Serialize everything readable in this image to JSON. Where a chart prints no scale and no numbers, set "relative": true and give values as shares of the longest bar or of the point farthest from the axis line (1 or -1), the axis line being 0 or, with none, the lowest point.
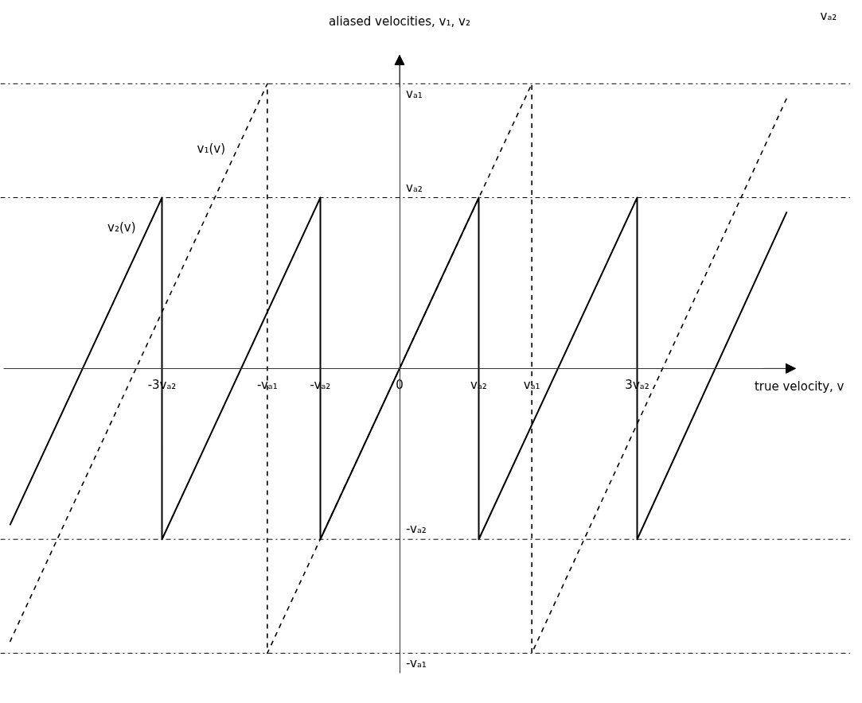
{
  "chart_data": {
    "type": "line",
    "relative": true,
    "xlabel": "true velocity, v",
    "ylabel": "aliased velocities, v₁, v₂",
    "annotations": [
      "vₐ₂"
    ],
    "xlim": [
      -5,
      5
    ],
    "xticks": [
      {
        "value": -3,
        "label": "-3vₐ₂"
      },
      {
        "value": -1.67,
        "label": "-vₐ₁"
      },
      {
        "value": -1,
        "label": "-vₐ₂"
      },
      0,
      {
        "value": 1,
        "label": "vₐ₂"
      },
      {
        "value": 1.67,
        "label": "vₐ₁"
      },
      {
        "value": 3,
        "label": "3vₐ₂"
      }
    ],
    "ref_lines": [
      {
        "axis": "y",
        "value": 1,
        "label": "vₐ₁",
        "color": "#000000",
        "line_style": "dashdot"
      },
      {
        "axis": "y",
        "value": 0.6,
        "label": "vₐ₂",
        "color": "#000000",
        "line_style": "dashdot"
      },
      {
        "axis": "y",
        "value": -0.6,
        "label": "-vₐ₂",
        "color": "#000000",
        "line_style": "dashdot"
      },
      {
        "axis": "y",
        "value": -1,
        "label": "-vₐ₁",
        "color": "#000000",
        "line_style": "dashdot"
      }
    ],
    "series": [
      {
        "name": "v₁(v)",
        "color": "#000000",
        "line_style": "dashed",
        "x": [
          -4.92,
          -1.67,
          -1.67,
          1.67,
          1.67,
          4.89
        ],
        "values": [
          -0.96,
          1,
          -1,
          1,
          -1,
          0.95
        ]
      },
      {
        "name": "v₂(v)",
        "color": "#000000",
        "line_style": "solid",
        "x": [
          -4.92,
          -3,
          -3,
          -1,
          -1,
          1,
          1,
          3,
          3,
          4.89
        ],
        "values": [
          -0.55,
          0.6,
          -0.6,
          0.6,
          -0.6,
          0.6,
          -0.6,
          0.6,
          -0.6,
          0.55
        ]
      }
    ]
  }
}
